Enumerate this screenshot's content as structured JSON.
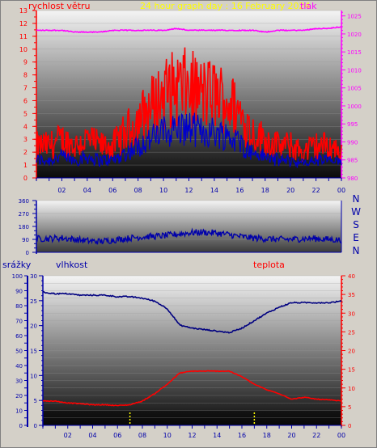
{
  "colors": {
    "background": "#d4d0c8",
    "wind": "#ff0000",
    "wind_low": "#0000cc",
    "pressure": "#ff00ff",
    "direction": "#0000aa",
    "humidity": "#000080",
    "temperature": "#ff0000",
    "rain": "#ffff00",
    "title": "#ffff00"
  },
  "header": {
    "wind_label": "rychlost větru",
    "title": "24 hour graph day : 16 February 2024",
    "pressure_label": "tlak"
  },
  "direction_labels": [
    "N",
    "W",
    "S",
    "E",
    "N"
  ],
  "lower_header": {
    "rain_label": "srážky",
    "humidity_label": "vlhkost",
    "temperature_label": "teplota"
  },
  "chart_data": [
    {
      "type": "line",
      "x": [
        "00",
        "01",
        "02",
        "03",
        "04",
        "05",
        "06",
        "07",
        "08",
        "09",
        "10",
        "11",
        "12",
        "13",
        "14",
        "15",
        "16",
        "17",
        "18",
        "19",
        "20",
        "21",
        "22",
        "23",
        "00"
      ],
      "x_ticks": [
        "02",
        "04",
        "06",
        "08",
        "10",
        "12",
        "14",
        "16",
        "18",
        "20",
        "22",
        "00"
      ],
      "series": [
        {
          "name": "rychlost větru",
          "axis": "left",
          "values": [
            2.5,
            2.5,
            3,
            2.5,
            3,
            2.5,
            2.5,
            3.5,
            4.5,
            5.5,
            6.5,
            7,
            7,
            6.5,
            6.5,
            6,
            5,
            3.5,
            3,
            2.5,
            2.5,
            2,
            2.5,
            2.5,
            2
          ]
        },
        {
          "name": "tlak",
          "axis": "right",
          "values": [
            1021,
            1021,
            1021,
            1020.5,
            1020.5,
            1020.5,
            1021,
            1021,
            1021,
            1021,
            1021,
            1021.5,
            1021,
            1021,
            1021,
            1021,
            1021,
            1021,
            1020.5,
            1021,
            1021,
            1021,
            1021.5,
            1021.5,
            1022
          ]
        }
      ],
      "y_left": {
        "ticks": [
          "0",
          "1",
          "2",
          "3",
          "4",
          "5",
          "6",
          "7",
          "8",
          "9",
          "10",
          "11",
          "12",
          "13"
        ],
        "range": [
          0,
          13
        ]
      },
      "y_right": {
        "ticks": [
          "980",
          "985",
          "990",
          "995",
          "1000",
          "1005",
          "1010",
          "1015",
          "1020",
          "1025"
        ],
        "range": [
          980,
          1026.5
        ]
      }
    },
    {
      "type": "line",
      "x": [
        "00",
        "01",
        "02",
        "03",
        "04",
        "05",
        "06",
        "07",
        "08",
        "09",
        "10",
        "11",
        "12",
        "13",
        "14",
        "15",
        "16",
        "17",
        "18",
        "19",
        "20",
        "21",
        "22",
        "23",
        "00"
      ],
      "x_ticks": [
        "02",
        "04",
        "06",
        "08",
        "10",
        "12",
        "14",
        "16",
        "18",
        "20",
        "22",
        "00"
      ],
      "series": [
        {
          "name": "direction",
          "values": [
            95,
            95,
            100,
            90,
            80,
            75,
            85,
            95,
            105,
            110,
            115,
            125,
            135,
            140,
            135,
            125,
            110,
            100,
            95,
            90,
            90,
            95,
            95,
            90,
            85
          ]
        }
      ],
      "y_left": {
        "ticks": [
          "0",
          "90",
          "180",
          "270",
          "360"
        ],
        "range": [
          0,
          360
        ]
      }
    },
    {
      "type": "line",
      "x": [
        "00",
        "01",
        "02",
        "03",
        "04",
        "05",
        "06",
        "07",
        "08",
        "09",
        "10",
        "11",
        "12",
        "13",
        "14",
        "15",
        "16",
        "17",
        "18",
        "19",
        "20",
        "21",
        "22",
        "23",
        "00"
      ],
      "x_ticks": [
        "02",
        "04",
        "06",
        "08",
        "10",
        "12",
        "14",
        "16",
        "18",
        "20",
        "22",
        "00"
      ],
      "series": [
        {
          "name": "vlhkost",
          "axis": "humidity",
          "values": [
            89,
            88,
            88,
            87,
            87,
            87,
            86,
            86,
            85,
            83,
            78,
            67,
            65,
            64,
            63,
            62,
            65,
            70,
            75,
            79,
            82,
            82,
            82,
            82,
            83
          ]
        },
        {
          "name": "teplota",
          "axis": "right",
          "values": [
            6.5,
            6.5,
            6,
            5.8,
            5.5,
            5.5,
            5.3,
            5.5,
            6.5,
            8.5,
            11,
            14,
            14.5,
            14.5,
            14.5,
            14.5,
            13,
            11,
            9.5,
            8.5,
            7,
            7.5,
            7,
            6.8,
            6.5
          ]
        }
      ],
      "rain_marks_hours": [
        7,
        17
      ],
      "y_rain": {
        "ticks": [
          "0",
          "5",
          "10",
          "15",
          "20",
          "25",
          "30",
          "35",
          "40",
          "45",
          "50",
          "55",
          "60",
          "65",
          "70",
          "75",
          "80",
          "85",
          "90",
          "95",
          "100"
        ],
        "range": [
          0,
          100
        ]
      },
      "y_humidity": {
        "ticks": [
          "0",
          "5",
          "10",
          "15",
          "20",
          "25",
          "30"
        ],
        "range": [
          0,
          30
        ]
      },
      "y_right": {
        "ticks": [
          "0",
          "5",
          "10",
          "15",
          "20",
          "25",
          "30",
          "35",
          "40"
        ],
        "range": [
          0,
          40
        ]
      }
    }
  ]
}
